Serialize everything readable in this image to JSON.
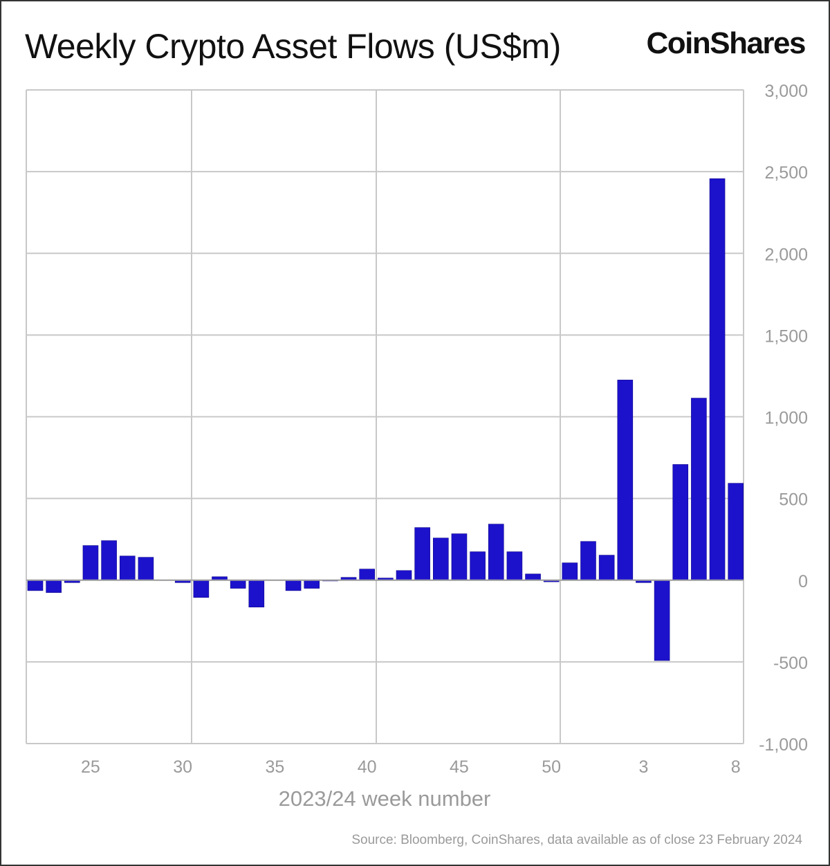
{
  "chart_data": {
    "type": "bar",
    "title": "Weekly Crypto Asset Flows (US$m)",
    "brand": "CoinShares",
    "xlabel": "2023/24 week number",
    "ylabel": "",
    "ylim": [
      -1000,
      3000
    ],
    "yticks": [
      3000,
      2500,
      2000,
      1500,
      1000,
      500,
      0,
      -500,
      -1000
    ],
    "ytick_labels": [
      "3,000",
      "2,500",
      "2,000",
      "1,500",
      "1,000",
      "500",
      "0",
      "-500",
      "-1,000"
    ],
    "xtick_labels": [
      {
        "label": "25",
        "week_index": 3
      },
      {
        "label": "30",
        "week_index": 8
      },
      {
        "label": "35",
        "week_index": 13
      },
      {
        "label": "40",
        "week_index": 18
      },
      {
        "label": "45",
        "week_index": 23
      },
      {
        "label": "50",
        "week_index": 28
      },
      {
        "label": "3",
        "week_index": 33
      },
      {
        "label": "8",
        "week_index": 38
      }
    ],
    "categories": [
      "22",
      "23",
      "24",
      "25",
      "26",
      "27",
      "28",
      "29",
      "30",
      "31",
      "32",
      "33",
      "34",
      "35",
      "36",
      "37",
      "38",
      "39",
      "40",
      "41",
      "42",
      "43",
      "44",
      "45",
      "46",
      "47",
      "48",
      "49",
      "50",
      "51",
      "52",
      "1",
      "2",
      "3",
      "4",
      "5",
      "6",
      "7",
      "8"
    ],
    "values": [
      -64,
      -76,
      -15,
      212,
      242,
      148,
      140,
      0,
      -15,
      -106,
      21,
      -50,
      -165,
      0,
      -64,
      -50,
      -5,
      17,
      68,
      13,
      59,
      322,
      258,
      284,
      174,
      343,
      174,
      38,
      -10,
      106,
      237,
      153,
      1225,
      -15,
      -492,
      708,
      1114,
      2457,
      593
    ],
    "bar_color": "#1c12cc",
    "grid": true,
    "legend": "none",
    "source": "Source: Bloomberg, CoinShares, data available as of close 23 February 2024"
  }
}
